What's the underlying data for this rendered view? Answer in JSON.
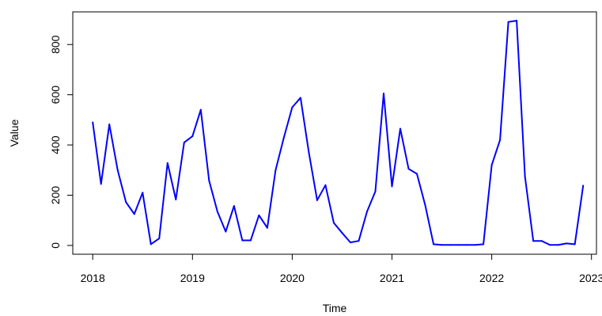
{
  "chart_data": {
    "type": "line",
    "xlabel": "Time",
    "ylabel": "Value",
    "xlim": [
      2017.8,
      2023.05
    ],
    "ylim": [
      -35,
      930
    ],
    "x_ticks": [
      2018,
      2019,
      2020,
      2021,
      2022,
      2023
    ],
    "x_tick_labels": [
      "2018",
      "2019",
      "2020",
      "2021",
      "2022",
      "2023"
    ],
    "y_ticks": [
      0,
      200,
      400,
      600,
      800
    ],
    "y_tick_labels": [
      "0",
      "200",
      "400",
      "600",
      "800"
    ],
    "grid": false,
    "legend": "none",
    "line_color": "#0000ff",
    "series": [
      {
        "x": [
          "2018-01",
          "2018-02",
          "2018-03",
          "2018-04",
          "2018-05",
          "2018-06",
          "2018-07",
          "2018-08",
          "2018-09",
          "2018-10",
          "2018-11",
          "2018-12",
          "2019-01",
          "2019-02",
          "2019-03",
          "2019-04",
          "2019-05",
          "2019-06",
          "2019-07",
          "2019-08",
          "2019-09",
          "2019-10",
          "2019-11",
          "2019-12",
          "2020-01",
          "2020-02",
          "2020-03",
          "2020-04",
          "2020-05",
          "2020-06",
          "2020-07",
          "2020-08",
          "2020-09",
          "2020-10",
          "2020-11",
          "2020-12",
          "2021-01",
          "2021-02",
          "2021-03",
          "2021-04",
          "2021-05",
          "2021-06",
          "2021-07",
          "2021-08",
          "2021-09",
          "2021-10",
          "2021-11",
          "2021-12",
          "2022-01",
          "2022-02",
          "2022-03",
          "2022-04",
          "2022-05",
          "2022-06",
          "2022-07",
          "2022-08",
          "2022-09",
          "2022-10",
          "2022-11",
          "2022-12"
        ],
        "values": [
          490,
          245,
          482,
          300,
          172,
          125,
          210,
          5,
          28,
          328,
          183,
          410,
          435,
          540,
          258,
          135,
          55,
          157,
          20,
          20,
          120,
          70,
          300,
          430,
          550,
          588,
          370,
          180,
          240,
          90,
          50,
          12,
          18,
          135,
          215,
          605,
          235,
          465,
          305,
          285,
          160,
          5,
          2,
          2,
          2,
          2,
          2,
          5,
          320,
          420,
          890,
          895,
          275,
          18,
          18,
          2,
          2,
          8,
          5,
          238
        ]
      }
    ]
  }
}
